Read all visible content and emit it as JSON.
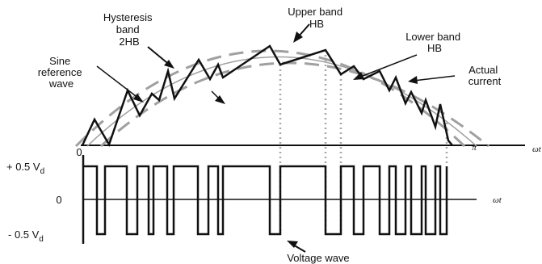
{
  "labels": {
    "hysteresis": [
      "Hysteresis",
      "band",
      "2HB"
    ],
    "sine_ref": [
      "Sine",
      "reference",
      "wave"
    ],
    "upper_band": [
      "Upper band",
      "HB"
    ],
    "lower_band": [
      "Lower band",
      "HB"
    ],
    "actual_current": [
      "Actual",
      "current"
    ],
    "origin": "0",
    "pi": "π",
    "omega_t_top": "ωt",
    "omega_t_bottom": "ωt",
    "plus_v": "+ 0.5 V",
    "minus_v": "- 0.5 V",
    "v_sub": "d",
    "zero": "0",
    "voltage_wave": "Voltage wave"
  },
  "colors": {
    "ink": "#111111",
    "band": "#a0a0a0",
    "dotted": "#a8a8a8"
  }
}
